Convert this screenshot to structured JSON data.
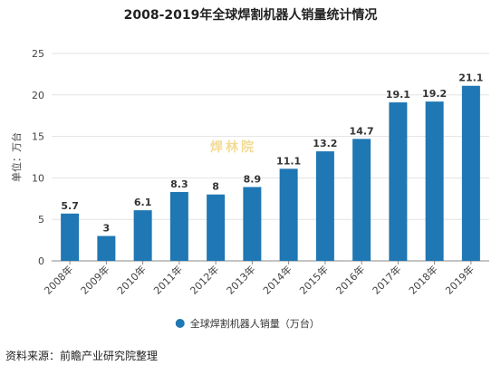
{
  "title": "2008-2019年全球焊割机器人销量统计情况",
  "source": "资料来源：前瞻产业研究院整理",
  "watermark": "焊林院",
  "colors": {
    "bar": "#1f77b4",
    "grid": "#e3e3e3",
    "axis": "#888888"
  },
  "chart_data": {
    "type": "bar",
    "categories": [
      "2008年",
      "2009年",
      "2010年",
      "2011年",
      "2012年",
      "2013年",
      "2014年",
      "2015年",
      "2016年",
      "2017年",
      "2018年",
      "2019年"
    ],
    "series": [
      {
        "name": "全球焊割机器人销量（万台）",
        "values": [
          5.7,
          3,
          6.1,
          8.3,
          8,
          8.9,
          11.1,
          13.2,
          14.7,
          19.1,
          19.2,
          21.1
        ]
      }
    ],
    "data_labels": [
      "5.7",
      "3",
      "6.1",
      "8.3",
      "8",
      "8.9",
      "11.1",
      "13.2",
      "14.7",
      "19.1",
      "19.2",
      "21.1"
    ],
    "ylabel": "单位：万台",
    "xlabel": "",
    "ylim": [
      0,
      25
    ],
    "yticks": [
      0,
      5,
      10,
      15,
      20,
      25
    ],
    "grid": true,
    "legend": "bottom-center"
  }
}
